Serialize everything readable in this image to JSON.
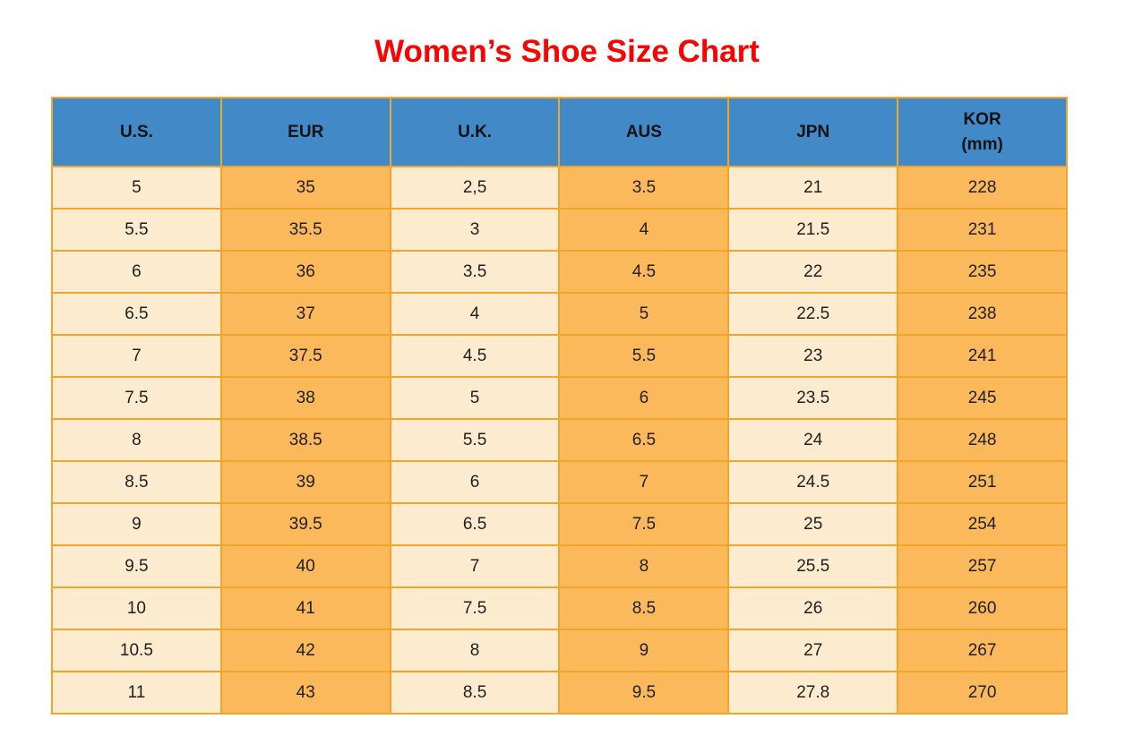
{
  "title": "Women’s Shoe Size Chart",
  "colors": {
    "title_red": "#FF0000",
    "header_blue": "#4289C7",
    "cell_cream": "#FDEBD0",
    "cell_orange": "#FBB95C",
    "border_orange": "#F2A42B",
    "text_black": "#1F1F1F"
  },
  "table": {
    "display_headers": [
      "U.S.",
      "EUR",
      "U.K.",
      "AUS",
      "JPN",
      "KOR\n(mm)"
    ]
  },
  "chart_data": {
    "type": "table",
    "title": "Women’s Shoe Size Chart",
    "columns": [
      "U.S.",
      "EUR",
      "U.K.",
      "AUS",
      "JPN",
      "KOR (mm)"
    ],
    "rows": [
      [
        "5",
        "35",
        "2,5",
        "3.5",
        "21",
        "228"
      ],
      [
        "5.5",
        "35.5",
        "3",
        "4",
        "21.5",
        "231"
      ],
      [
        "6",
        "36",
        "3.5",
        "4.5",
        "22",
        "235"
      ],
      [
        "6.5",
        "37",
        "4",
        "5",
        "22.5",
        "238"
      ],
      [
        "7",
        "37.5",
        "4.5",
        "5.5",
        "23",
        "241"
      ],
      [
        "7.5",
        "38",
        "5",
        "6",
        "23.5",
        "245"
      ],
      [
        "8",
        "38.5",
        "5.5",
        "6.5",
        "24",
        "248"
      ],
      [
        "8.5",
        "39",
        "6",
        "7",
        "24.5",
        "251"
      ],
      [
        "9",
        "39.5",
        "6.5",
        "7.5",
        "25",
        "254"
      ],
      [
        "9.5",
        "40",
        "7",
        "8",
        "25.5",
        "257"
      ],
      [
        "10",
        "41",
        "7.5",
        "8.5",
        "26",
        "260"
      ],
      [
        "10.5",
        "42",
        "8",
        "9",
        "27",
        "267"
      ],
      [
        "11",
        "43",
        "8.5",
        "9.5",
        "27.8",
        "270"
      ]
    ]
  }
}
